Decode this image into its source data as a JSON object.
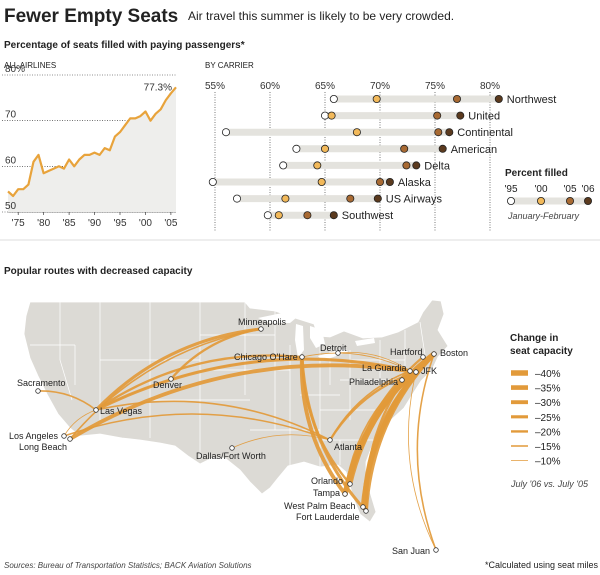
{
  "headline": {
    "title": "Fewer Empty Seats",
    "dek": "Air travel this summer is likely to be very crowded."
  },
  "section1_title": "Percentage of seats filled with paying passengers*",
  "section2_title": "Popular routes with decreased capacity",
  "colors": {
    "accent": "#e8a33b",
    "dot_1995": "#ffffff",
    "dot_2000": "#f2b95a",
    "dot_2005": "#a86a33",
    "dot_2006": "#5b3a1e",
    "bar": "#e4e3de",
    "area": "#eeeeec",
    "land": "#dcdad5",
    "water": "#ffffff",
    "route": "#e29a3a"
  },
  "chart_data": [
    {
      "type": "area",
      "panel_label": "ALL AIRLINES",
      "xlabel": "",
      "ylabel": "",
      "ylim": [
        50,
        80
      ],
      "xlim": [
        1973,
        2006
      ],
      "yticks": [
        50,
        60,
        70,
        80
      ],
      "ytick_labels": [
        "50",
        "60",
        "70",
        "80%"
      ],
      "xticks": [
        1975,
        1980,
        1985,
        1990,
        1995,
        2000,
        2005
      ],
      "xtick_labels": [
        "'75",
        "'80",
        "'85",
        "'90",
        "'95",
        "'00",
        "'05"
      ],
      "grid": true,
      "annotation": "77.3%",
      "series": [
        {
          "x": [
            1973,
            1974,
            1975,
            1976,
            1977,
            1978,
            1979,
            1980,
            1981,
            1982,
            1983,
            1984,
            1985,
            1986,
            1987,
            1988,
            1989,
            1990,
            1991,
            1992,
            1993,
            1994,
            1995,
            1996,
            1997,
            1998,
            1999,
            2000,
            2001,
            2002,
            2003,
            2004,
            2005,
            2006
          ],
          "y": [
            54.5,
            53.5,
            55.0,
            55.0,
            56.0,
            61.0,
            62.5,
            58.5,
            59.0,
            59.5,
            60.0,
            59.5,
            61.5,
            60.0,
            61.5,
            62.5,
            62.5,
            63.0,
            62.5,
            64.0,
            63.5,
            66.5,
            67.5,
            69.0,
            70.5,
            70.5,
            71.0,
            72.0,
            70.0,
            71.5,
            72.5,
            74.5,
            76.0,
            77.3
          ]
        }
      ]
    },
    {
      "type": "scatter",
      "panel_label": "BY CARRIER",
      "xlim": [
        55,
        80
      ],
      "xticks": [
        55,
        60,
        65,
        70,
        75,
        80
      ],
      "xtick_labels": [
        "55%",
        "60%",
        "65%",
        "70%",
        "75%",
        "80%"
      ],
      "grid": true,
      "legend_title": "Percent filled",
      "legend_years": [
        "'95",
        "'00",
        "'05",
        "'06"
      ],
      "legend_note": "January-February",
      "legend_placement": "right",
      "carriers": [
        {
          "name": "Northwest",
          "y1995": 65.8,
          "y2000": 69.7,
          "y2005": 77.0,
          "y2006": 80.8
        },
        {
          "name": "United",
          "y1995": 65.0,
          "y2000": 65.6,
          "y2005": 75.2,
          "y2006": 77.3
        },
        {
          "name": "Continental",
          "y1995": 56.0,
          "y2000": 67.9,
          "y2005": 75.3,
          "y2006": 76.3
        },
        {
          "name": "American",
          "y1995": 62.4,
          "y2000": 65.0,
          "y2005": 72.2,
          "y2006": 75.7
        },
        {
          "name": "Delta",
          "y1995": 61.2,
          "y2000": 64.3,
          "y2005": 72.4,
          "y2006": 73.3
        },
        {
          "name": "Alaska",
          "y1995": 54.8,
          "y2000": 64.7,
          "y2005": 70.0,
          "y2006": 70.9
        },
        {
          "name": "US Airways",
          "y1995": 57.0,
          "y2000": 61.4,
          "y2005": 67.3,
          "y2006": 69.8
        },
        {
          "name": "Southwest",
          "y1995": 59.8,
          "y2000": 60.8,
          "y2005": 63.4,
          "y2006": 65.8
        }
      ]
    }
  ],
  "map": {
    "legend_title": "Change in seat capacity",
    "legend_title_line1": "Change in",
    "legend_title_line2": "seat capacity",
    "legend_items": [
      {
        "label": "–40%",
        "pct": 40
      },
      {
        "label": "–35%",
        "pct": 35
      },
      {
        "label": "–30%",
        "pct": 30
      },
      {
        "label": "–25%",
        "pct": 25
      },
      {
        "label": "–20%",
        "pct": 20
      },
      {
        "label": "–15%",
        "pct": 15
      },
      {
        "label": "–10%",
        "pct": 10
      }
    ],
    "legend_note": "July '06 vs. July '05",
    "cities": [
      {
        "id": "minneapolis",
        "name": "Minneapolis"
      },
      {
        "id": "chicago",
        "name": "Chicago O'Hare"
      },
      {
        "id": "detroit",
        "name": "Detroit"
      },
      {
        "id": "hartford",
        "name": "Hartford"
      },
      {
        "id": "boston",
        "name": "Boston"
      },
      {
        "id": "laguardia",
        "name": "La Guardia"
      },
      {
        "id": "jfk",
        "name": "JFK"
      },
      {
        "id": "philadelphia",
        "name": "Philadelphia"
      },
      {
        "id": "sacramento",
        "name": "Sacramento"
      },
      {
        "id": "denver",
        "name": "Denver"
      },
      {
        "id": "lasvegas",
        "name": "Las Vegas"
      },
      {
        "id": "losangeles",
        "name": "Los Angeles"
      },
      {
        "id": "longbeach",
        "name": "Long Beach"
      },
      {
        "id": "atlanta",
        "name": "Atlanta"
      },
      {
        "id": "dallas",
        "name": "Dallas/Fort Worth"
      },
      {
        "id": "orlando",
        "name": "Orlando"
      },
      {
        "id": "tampa",
        "name": "Tampa"
      },
      {
        "id": "westpalm",
        "name": "West Palm Beach"
      },
      {
        "id": "ftlauderdale",
        "name": "Fort Lauderdale"
      },
      {
        "id": "sanjuan",
        "name": "San Juan"
      }
    ],
    "routes": [
      {
        "from": "minneapolis",
        "to": "lasvegas",
        "pct": 25
      },
      {
        "from": "minneapolis",
        "to": "denver",
        "pct": 20
      },
      {
        "from": "minneapolis",
        "to": "longbeach",
        "pct": 15
      },
      {
        "from": "chicago",
        "to": "lasvegas",
        "pct": 20
      },
      {
        "from": "chicago",
        "to": "tampa",
        "pct": 30
      },
      {
        "from": "chicago",
        "to": "ftlauderdale",
        "pct": 25
      },
      {
        "from": "chicago",
        "to": "orlando",
        "pct": 20
      },
      {
        "from": "sacramento",
        "to": "lasvegas",
        "pct": 15
      },
      {
        "from": "losangeles",
        "to": "lasvegas",
        "pct": 10
      },
      {
        "from": "longbeach",
        "to": "jfk",
        "pct": 30
      },
      {
        "from": "lasvegas",
        "to": "jfk",
        "pct": 25
      },
      {
        "from": "lasvegas",
        "to": "laguardia",
        "pct": 10
      },
      {
        "from": "lasvegas",
        "to": "atlanta",
        "pct": 15
      },
      {
        "from": "losangeles",
        "to": "atlanta",
        "pct": 15
      },
      {
        "from": "dallas",
        "to": "atlanta",
        "pct": 10
      },
      {
        "from": "detroit",
        "to": "laguardia",
        "pct": 10
      },
      {
        "from": "chicago",
        "to": "laguardia",
        "pct": 10
      },
      {
        "from": "jfk",
        "to": "atlanta",
        "pct": 20
      },
      {
        "from": "laguardia",
        "to": "atlanta",
        "pct": 15
      },
      {
        "from": "jfk",
        "to": "orlando",
        "pct": 25
      },
      {
        "from": "jfk",
        "to": "tampa",
        "pct": 30
      },
      {
        "from": "jfk",
        "to": "westpalm",
        "pct": 20
      },
      {
        "from": "jfk",
        "to": "ftlauderdale",
        "pct": 25
      },
      {
        "from": "laguardia",
        "to": "ftlauderdale",
        "pct": 20
      },
      {
        "from": "philadelphia",
        "to": "tampa",
        "pct": 15
      },
      {
        "from": "hartford",
        "to": "orlando",
        "pct": 20
      },
      {
        "from": "boston",
        "to": "tampa",
        "pct": 40
      },
      {
        "from": "boston",
        "to": "orlando",
        "pct": 35
      },
      {
        "from": "boston",
        "to": "westpalm",
        "pct": 35
      },
      {
        "from": "boston",
        "to": "ftlauderdale",
        "pct": 30
      },
      {
        "from": "boston",
        "to": "sanjuan",
        "pct": 15
      },
      {
        "from": "jfk",
        "to": "sanjuan",
        "pct": 10
      }
    ]
  },
  "footer": {
    "sources": "Sources: Bureau of Transportation Statistics; BACK Aviation Solutions",
    "footnote": "*Calculated using seat miles"
  }
}
